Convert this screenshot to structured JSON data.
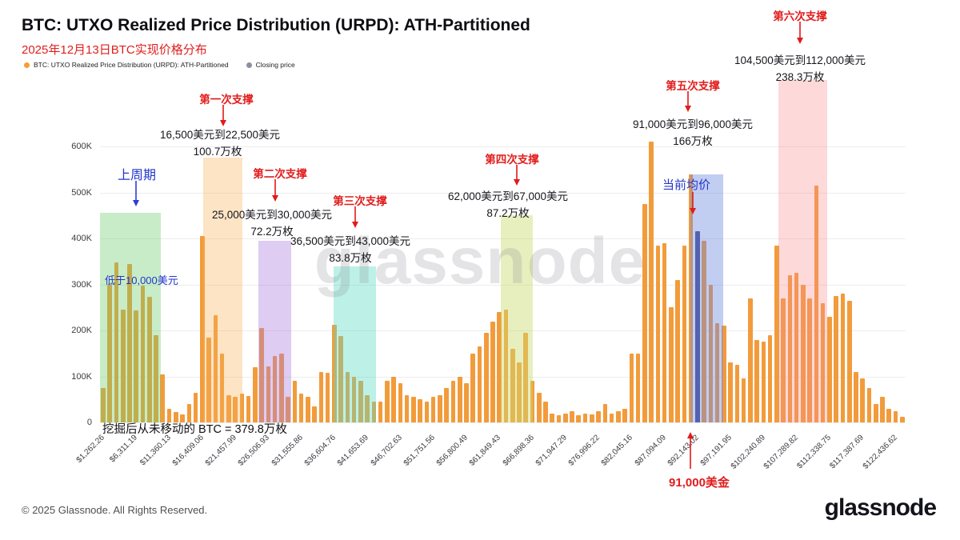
{
  "header": {
    "title": "BTC: UTXO Realized Price Distribution (URPD): ATH-Partitioned",
    "subtitle": "2025年12月13日BTC实现价格分布"
  },
  "legend": {
    "items": [
      {
        "label": "BTC: UTXO Realized Price Distribution (URPD): ATH-Partitioned",
        "color": "#F59E33"
      },
      {
        "label": "Closing price",
        "color": "#8A8FA3"
      }
    ]
  },
  "watermark": "glassnode",
  "footer": {
    "copyright": "© 2025 Glassnode. All Rights Reserved.",
    "logo": "glassnode"
  },
  "chart_data": {
    "type": "bar",
    "title": "BTC: UTXO Realized Price Distribution (URPD): ATH-Partitioned",
    "unit": "BTC",
    "ylim": [
      0,
      600000
    ],
    "yticks": [
      0,
      100000,
      200000,
      300000,
      400000,
      500000,
      600000
    ],
    "ytick_labels": [
      "0",
      "100K",
      "200K",
      "300K",
      "400K",
      "500K",
      "600K"
    ],
    "x_start_usd": 1262.26,
    "bar_step_usd": 1009.79,
    "xtick_every": 5,
    "xtick_labels": [
      "$1,262.26",
      "$6,311.19",
      "$11,360.13",
      "$16,409.06",
      "$21,457.99",
      "$26,506.93",
      "$31,555.86",
      "$36,604.76",
      "$41,653.69",
      "$46,702.63",
      "$51,751.56",
      "$56,800.49",
      "$61,849.43",
      "$66,898.36",
      "$71,947.29",
      "$76,996.22",
      "$82,045.16",
      "$87,094.09",
      "$92,143.02",
      "$97,191.95",
      "$102,240.89",
      "$107,289.82",
      "$112,338.75",
      "$117,387.69",
      "$122,436.62"
    ],
    "bar_color": "#F29B3B",
    "closing_bar_color": "#3E478F",
    "closing_price_usd": 92143.02,
    "closing_price_index": 90,
    "values": [
      75000,
      300000,
      348000,
      245000,
      345000,
      243000,
      297000,
      273000,
      190000,
      105000,
      30000,
      22000,
      18000,
      40000,
      65000,
      405000,
      185000,
      233000,
      150000,
      60000,
      55000,
      62000,
      58000,
      120000,
      205000,
      122000,
      145000,
      150000,
      55000,
      90000,
      62000,
      55000,
      35000,
      110000,
      108000,
      213000,
      188000,
      110000,
      100000,
      90000,
      60000,
      45000,
      46000,
      90000,
      100000,
      85000,
      60000,
      55000,
      50000,
      46000,
      55000,
      60000,
      75000,
      90000,
      100000,
      85000,
      150000,
      165000,
      195000,
      220000,
      240000,
      245000,
      160000,
      130000,
      195000,
      90000,
      65000,
      45000,
      20000,
      15000,
      20000,
      25000,
      15000,
      20000,
      18000,
      25000,
      40000,
      20000,
      25000,
      30000,
      150000,
      150000,
      475000,
      610000,
      385000,
      390000,
      250000,
      310000,
      385000,
      540000,
      415000,
      395000,
      300000,
      215000,
      210000,
      130000,
      125000,
      95000,
      270000,
      180000,
      175000,
      190000,
      385000,
      270000,
      320000,
      325000,
      300000,
      270000,
      515000,
      260000,
      230000,
      275000,
      280000,
      265000,
      110000,
      95000,
      75000,
      40000,
      55000,
      30000,
      25000,
      12000
    ],
    "zones": [
      {
        "id": "cycle-low",
        "from_usd": 760,
        "to_usd": 10000,
        "top_value": 455000,
        "color": "rgba(110,205,110,0.38)"
      },
      {
        "id": "support-1",
        "from_usd": 16500,
        "to_usd": 22500,
        "top_value": 575000,
        "color": "rgba(246,178,90,0.35)"
      },
      {
        "id": "support-2",
        "from_usd": 25000,
        "to_usd": 30000,
        "top_value": 395000,
        "color": "rgba(168,120,220,0.38)"
      },
      {
        "id": "support-3",
        "from_usd": 36500,
        "to_usd": 43000,
        "top_value": 340000,
        "color": "rgba(90,220,195,0.40)"
      },
      {
        "id": "support-4",
        "from_usd": 62000,
        "to_usd": 67000,
        "top_value": 450000,
        "color": "rgba(205,220,110,0.45)"
      },
      {
        "id": "support-5",
        "from_usd": 91000,
        "to_usd": 96000,
        "top_value": 540000,
        "color": "rgba(110,135,225,0.42)"
      },
      {
        "id": "support-6",
        "from_usd": 104500,
        "to_usd": 112000,
        "top_value": 744000,
        "color": "rgba(248,140,140,0.33)"
      }
    ],
    "annotations": [
      {
        "id": "prev_cycle",
        "text": "上周期",
        "style": "blue"
      },
      {
        "id": "below_10k",
        "text": "低于10,000美元",
        "style": "blue"
      },
      {
        "id": "s1_title",
        "text": "第一次支撑",
        "style": "red"
      },
      {
        "id": "s1_range",
        "text": "16,500美元到22,500美元",
        "style": "black"
      },
      {
        "id": "s1_amount",
        "text": "100.7万枚",
        "style": "black"
      },
      {
        "id": "s2_title",
        "text": "第二次支撑",
        "style": "red"
      },
      {
        "id": "s2_range",
        "text": "25,000美元到30,000美元",
        "style": "black"
      },
      {
        "id": "s2_amount",
        "text": "72.2万枚",
        "style": "black"
      },
      {
        "id": "s3_title",
        "text": "第三次支撑",
        "style": "red"
      },
      {
        "id": "s3_range",
        "text": "36,500美元到43,000美元",
        "style": "black"
      },
      {
        "id": "s3_amount",
        "text": "83.8万枚",
        "style": "black"
      },
      {
        "id": "s4_title",
        "text": "第四次支撑",
        "style": "red"
      },
      {
        "id": "s4_range",
        "text": "62,000美元到67,000美元",
        "style": "black"
      },
      {
        "id": "s4_amount",
        "text": "87.2万枚",
        "style": "black"
      },
      {
        "id": "s5_title",
        "text": "第五次支撑",
        "style": "red"
      },
      {
        "id": "s5_range",
        "text": "91,000美元到96,000美元",
        "style": "black"
      },
      {
        "id": "s5_amount",
        "text": "166万枚",
        "style": "black"
      },
      {
        "id": "s6_title",
        "text": "第六次支撑",
        "style": "red"
      },
      {
        "id": "s6_range",
        "text": "104,500美元到112,000美元",
        "style": "black"
      },
      {
        "id": "s6_amount",
        "text": "238.3万枚",
        "style": "black"
      },
      {
        "id": "current_avg",
        "text": "当前均价",
        "style": "blue"
      },
      {
        "id": "current_price",
        "text": "91,000美金",
        "style": "red-big"
      },
      {
        "id": "mined",
        "text": "挖掘后从未移动的 BTC = 379.8万枚",
        "style": "black-big"
      }
    ]
  }
}
